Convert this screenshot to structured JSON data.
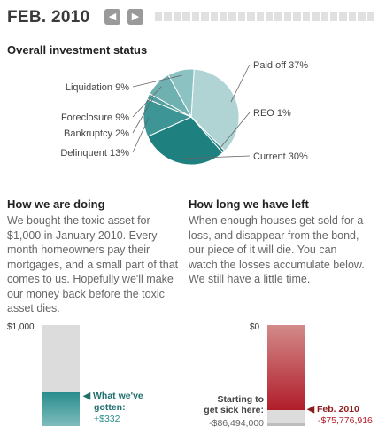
{
  "header": {
    "date": "FEB. 2010",
    "prev_icon": "left-arrow-icon",
    "next_icon": "right-arrow-icon",
    "timeline_segments": 24
  },
  "chart_data": [
    {
      "type": "pie",
      "title": "Overall investment status",
      "slices": [
        {
          "label": "Paid off 37%",
          "value": 37,
          "color": "#b0d4d4"
        },
        {
          "label": "REO 1%",
          "value": 1,
          "color": "#2e8a8a"
        },
        {
          "label": "Current 30%",
          "value": 30,
          "color": "#1f8080"
        },
        {
          "label": "Delinquent 13%",
          "value": 13,
          "color": "#3d9595"
        },
        {
          "label": "Bankruptcy 2%",
          "value": 2,
          "color": "#549f9f"
        },
        {
          "label": "Foreclosure 9%",
          "value": 9,
          "color": "#6fb1b1"
        },
        {
          "label": "Liquidation 9%",
          "value": 9,
          "color": "#8dc2c2"
        }
      ]
    },
    {
      "type": "bar",
      "title": "How we are doing",
      "top_label": "$1,000",
      "max": 1000,
      "value": 332,
      "marker_label_1": "What we've",
      "marker_label_2": "gotten:",
      "marker_value": "+$332",
      "colors": {
        "fill": "#2a8d8d",
        "empty": "#dcdcdc"
      }
    },
    {
      "type": "bar",
      "title": "How long we have left",
      "top_label": "$0",
      "total": 86494000,
      "remaining": 75776916,
      "start_text_1": "Starting to",
      "start_text_2": "get sick here:",
      "start_value": "-$86,494,000",
      "current_label": "Feb. 2010",
      "current_value": "-$75,776,916",
      "colors": {
        "fill_top": "#d38a8a",
        "fill_bottom": "#b01d2a",
        "empty": "#dcdcdc",
        "accent": "#8e1b1b"
      }
    }
  ],
  "doing": {
    "title": "How we are doing",
    "body": "We bought the toxic asset for $1,000 in January 2010. Every month homeowners pay their mortgages, and a small part of that comes to us. Hopefully we'll make our money back before the toxic asset dies."
  },
  "left": {
    "title": "How long we have left",
    "body": "When enough houses get sold for a loss, and disappear from the bond, our piece of it will die. You can watch the losses accumulate below.  We still have a little time."
  }
}
